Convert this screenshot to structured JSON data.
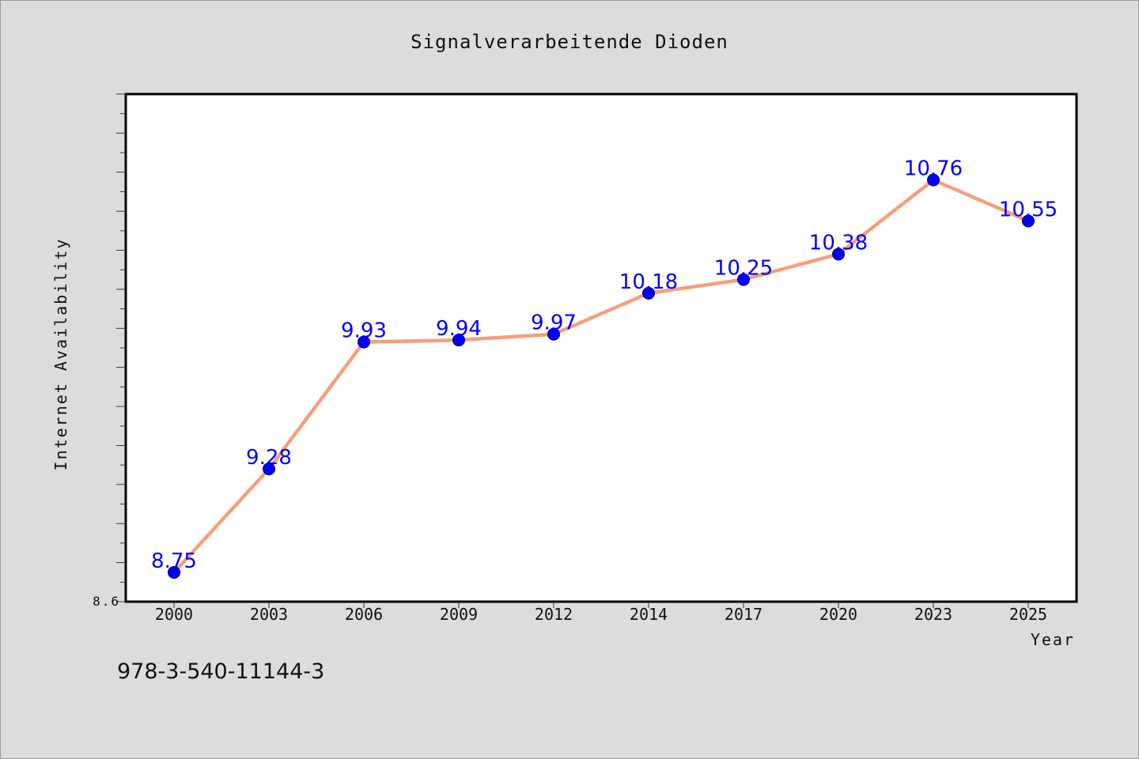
{
  "chart_data": {
    "type": "line",
    "title": "Signalverarbeitende Dioden",
    "xlabel": "Year",
    "ylabel": "Internet Availability",
    "categories": [
      "2000",
      "2003",
      "2006",
      "2009",
      "2012",
      "2014",
      "2017",
      "2020",
      "2023",
      "2025"
    ],
    "series": [
      {
        "values": [
          8.75,
          9.28,
          9.93,
          9.94,
          9.97,
          10.18,
          10.25,
          10.38,
          10.76,
          10.55
        ]
      }
    ],
    "data_labels": [
      "8.75",
      "9.28",
      "9.93",
      "9.94",
      "9.97",
      "10.18",
      "10.25",
      "10.38",
      "10.76",
      "10.55"
    ],
    "ylim": [
      8.6,
      11.2
    ],
    "y_min_label": "8.6",
    "grid": false,
    "colors": {
      "line": "#f4a07c",
      "marker": "#0000ff",
      "data_label": "#0000ff",
      "plot_background": "#ffffff",
      "page_background": "#dcdcdc"
    }
  },
  "footer": {
    "isbn": "978-3-540-11144-3"
  }
}
